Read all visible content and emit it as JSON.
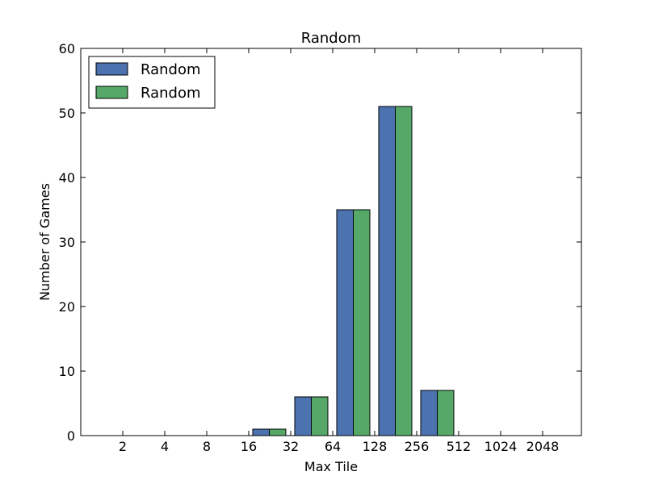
{
  "chart_data": {
    "type": "bar",
    "title": "Random",
    "xlabel": "Max Tile",
    "ylabel": "Number of Games",
    "ylim": [
      0,
      60
    ],
    "yticks": [
      0,
      10,
      20,
      30,
      40,
      50,
      60
    ],
    "categories": [
      "2",
      "4",
      "8",
      "16",
      "32",
      "64",
      "128",
      "256",
      "512",
      "1024",
      "2048"
    ],
    "series": [
      {
        "name": "Random",
        "color": "#4c72b0",
        "values": [
          0,
          0,
          0,
          1,
          6,
          35,
          51,
          7,
          0,
          0,
          0
        ]
      },
      {
        "name": "Random",
        "color": "#55a868",
        "values": [
          0,
          0,
          0,
          1,
          6,
          35,
          51,
          7,
          0,
          0,
          0
        ]
      }
    ],
    "legend": "top-left",
    "grid": false
  }
}
